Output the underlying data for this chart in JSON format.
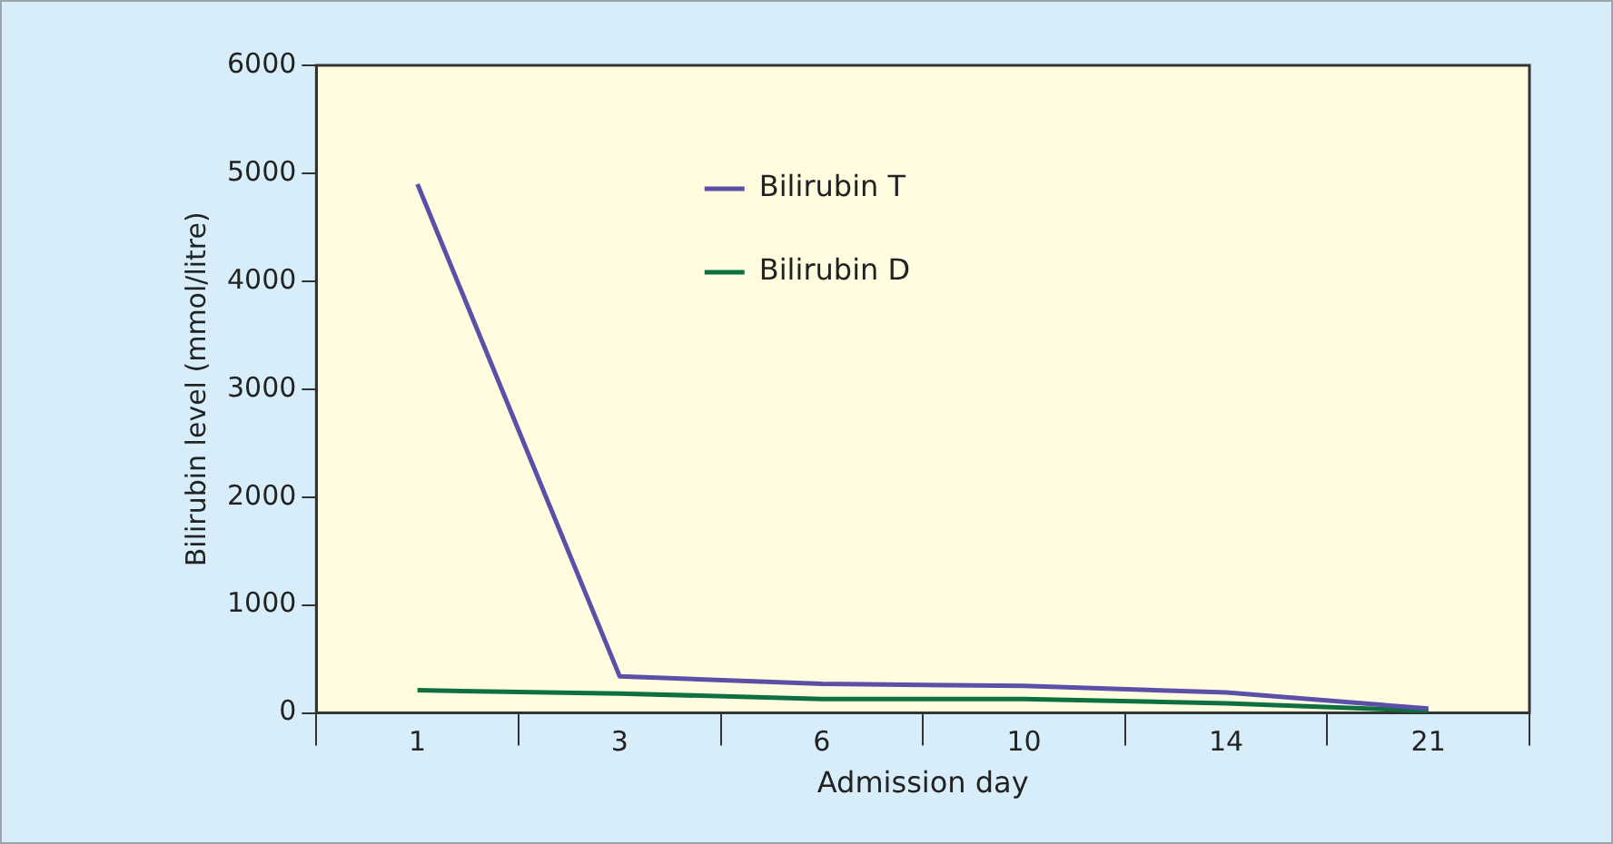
{
  "chart_data": {
    "type": "line",
    "xlabel": "Admission day",
    "ylabel": "Bilirubin level (mmol/litre)",
    "categories": [
      "1",
      "3",
      "6",
      "10",
      "14",
      "21"
    ],
    "series": [
      {
        "name": "Bilirubin T",
        "color": "#5b4fa8",
        "values": [
          4900,
          340,
          270,
          250,
          190,
          40
        ]
      },
      {
        "name": "Bilirubin D",
        "color": "#0e7040",
        "values": [
          210,
          180,
          130,
          130,
          90,
          20
        ]
      }
    ],
    "ylim": [
      0,
      6000
    ],
    "yticks": [
      0,
      1000,
      2000,
      3000,
      4000,
      5000,
      6000
    ],
    "grid": false,
    "legend": "top",
    "marker": "none",
    "line_style": "solid"
  }
}
